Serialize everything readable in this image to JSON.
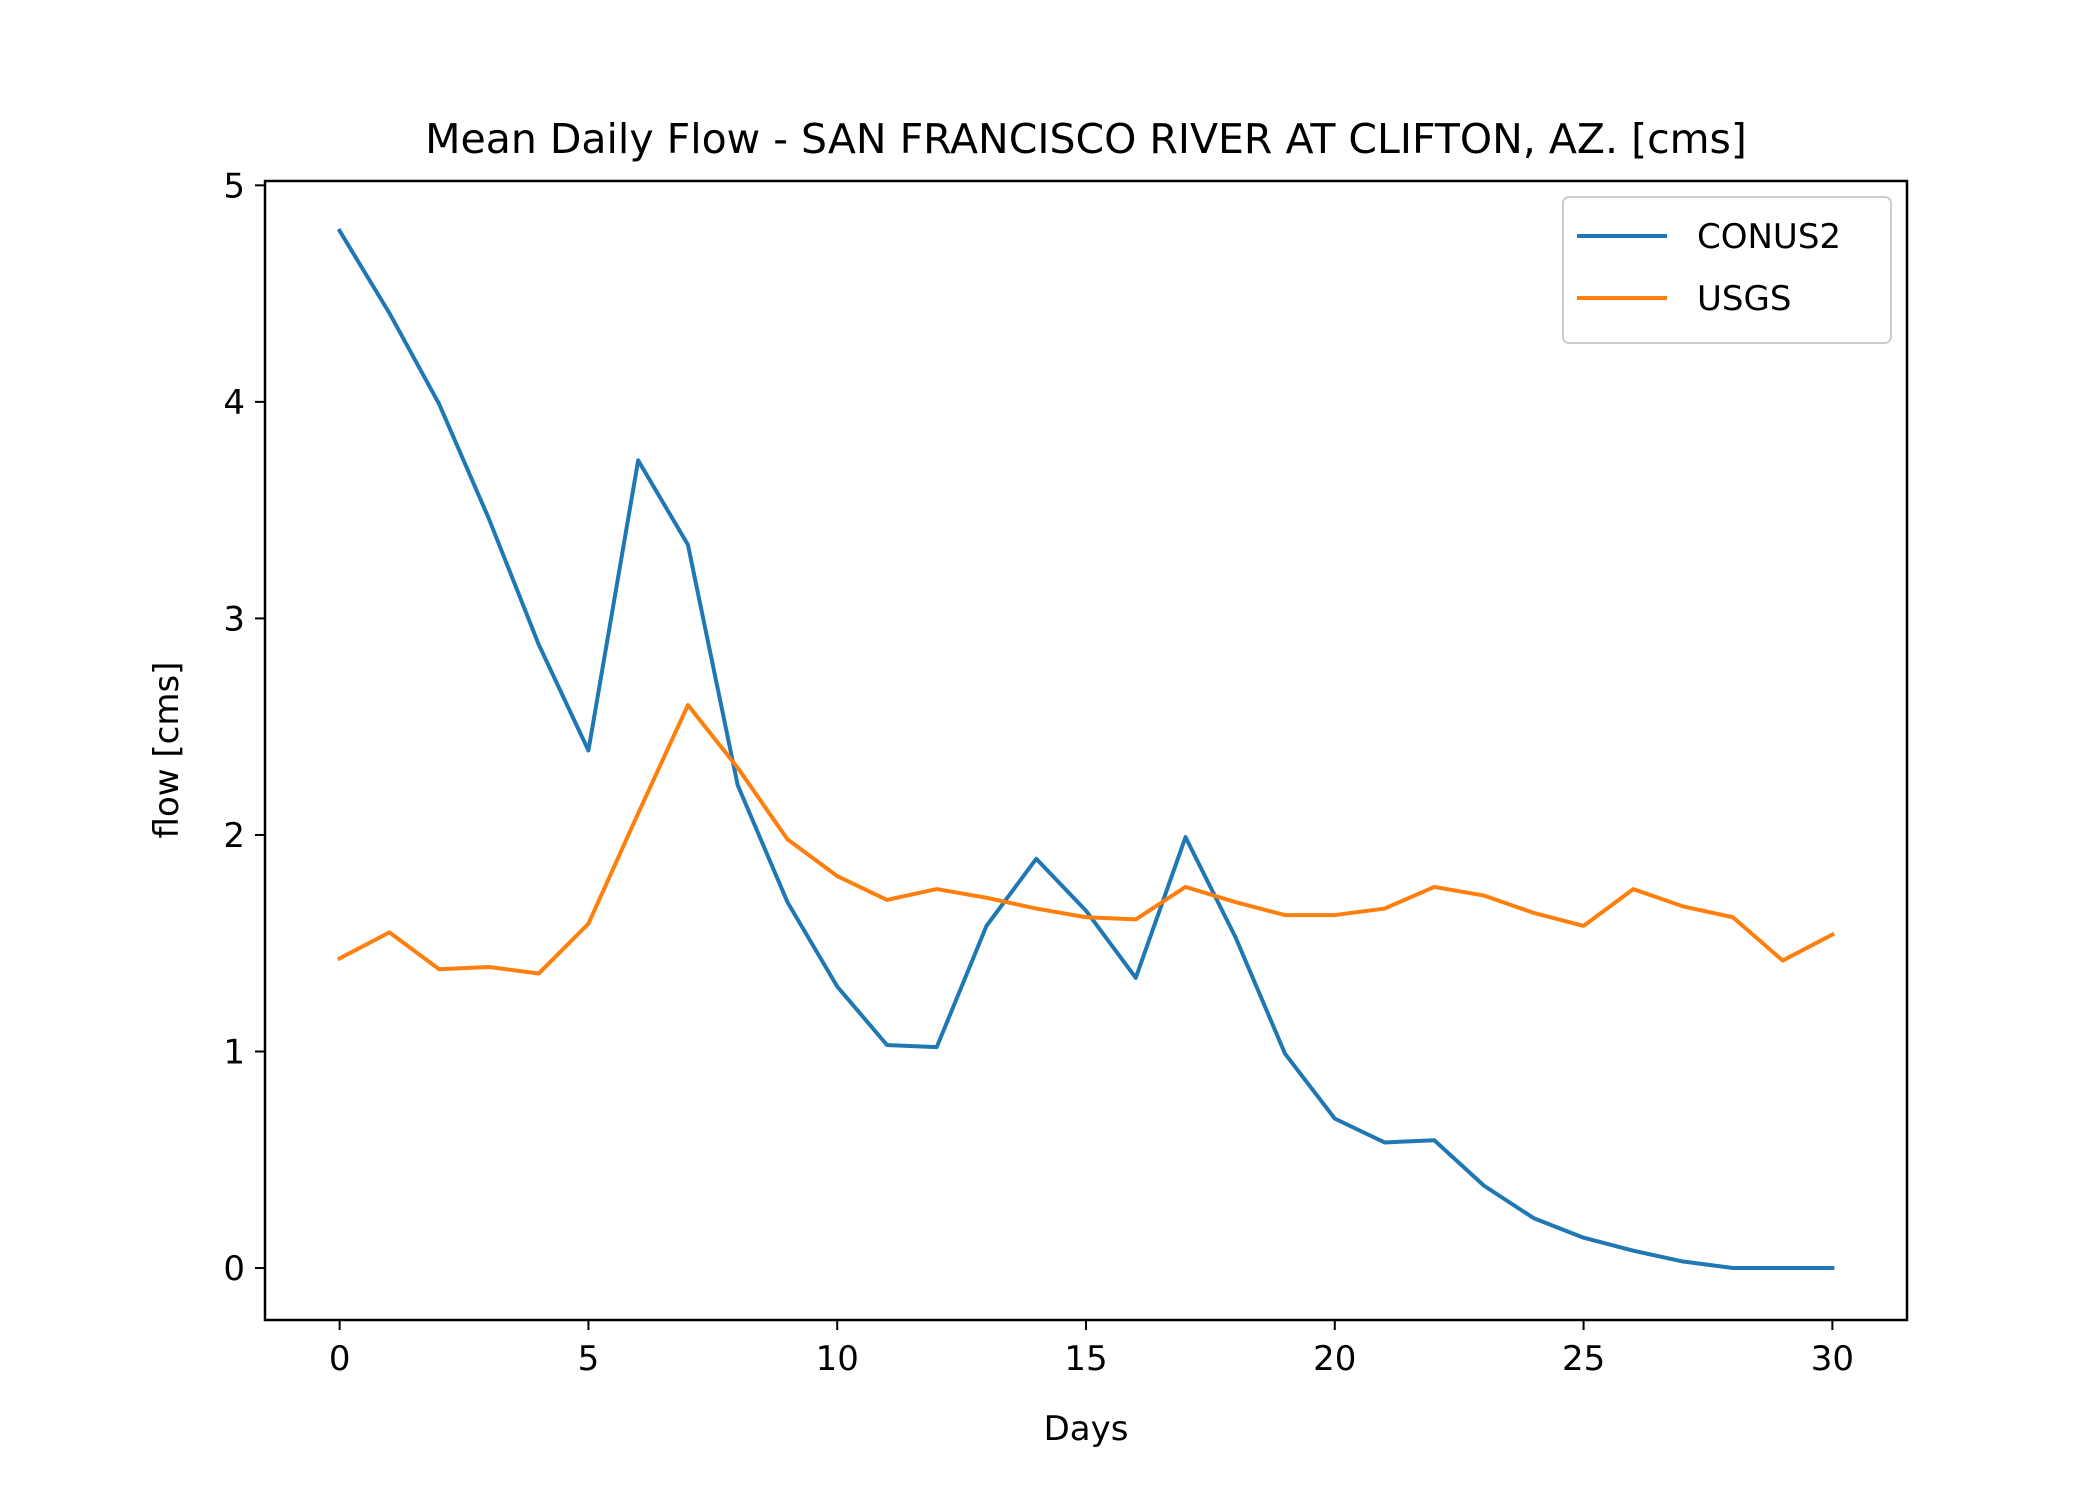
{
  "chart_data": {
    "type": "line",
    "title": "Mean Daily Flow - SAN FRANCISCO RIVER AT CLIFTON, AZ. [cms]",
    "xlabel": "Days",
    "ylabel": "flow [cms]",
    "xlim": [
      -1.5,
      31.5
    ],
    "ylim": [
      -0.24,
      5.02
    ],
    "xticks": [
      0,
      5,
      10,
      15,
      20,
      25,
      30
    ],
    "yticks": [
      0,
      1,
      2,
      3,
      4,
      5
    ],
    "grid": false,
    "legend": "upper right",
    "x": [
      0,
      1,
      2,
      3,
      4,
      5,
      6,
      7,
      8,
      9,
      10,
      11,
      12,
      13,
      14,
      15,
      16,
      17,
      18,
      19,
      20,
      21,
      22,
      23,
      24,
      25,
      26,
      27,
      28,
      29,
      30
    ],
    "series": [
      {
        "name": "CONUS2",
        "color": "#1f77b4",
        "values": [
          4.79,
          4.41,
          3.99,
          3.46,
          2.88,
          2.39,
          3.73,
          3.34,
          2.23,
          1.69,
          1.3,
          1.03,
          1.02,
          1.58,
          1.89,
          1.65,
          1.34,
          1.99,
          1.53,
          0.99,
          0.69,
          0.58,
          0.59,
          0.38,
          0.23,
          0.14,
          0.08,
          0.03,
          0.0,
          0.0,
          0.0
        ]
      },
      {
        "name": "USGS",
        "color": "#ff7f0e",
        "values": [
          1.43,
          1.55,
          1.38,
          1.39,
          1.36,
          1.59,
          2.1,
          2.6,
          2.31,
          1.98,
          1.81,
          1.7,
          1.75,
          1.71,
          1.66,
          1.62,
          1.61,
          1.76,
          1.69,
          1.63,
          1.63,
          1.66,
          1.76,
          1.72,
          1.64,
          1.58,
          1.75,
          1.67,
          1.62,
          1.42,
          1.54
        ]
      }
    ]
  }
}
